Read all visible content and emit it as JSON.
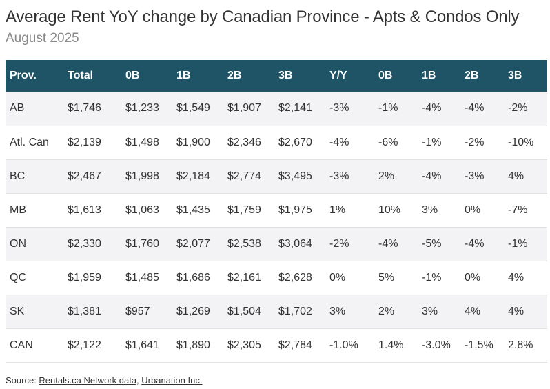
{
  "header": {
    "title": "Average Rent YoY change by Canadian Province - Apts & Condos Only",
    "subtitle": "August 2025"
  },
  "source": {
    "prefix": "Source: ",
    "link1": "Rentals.ca Network data",
    "separator": ", ",
    "link2": "Urbanation Inc."
  },
  "colors": {
    "header_bg": "#1f5466",
    "header_text": "#ffffff",
    "row_shade": "#f3f3f5"
  },
  "chart_data": {
    "type": "table",
    "columns": [
      "Prov.",
      "Total",
      "0B",
      "1B",
      "2B",
      "3B",
      "Y/Y",
      "0B",
      "1B",
      "2B",
      "3B"
    ],
    "rows": [
      [
        "AB",
        "$1,746",
        "$1,233",
        "$1,549",
        "$1,907",
        "$2,141",
        "-3%",
        "-1%",
        "-4%",
        "-4%",
        "-2%"
      ],
      [
        "Atl. Can",
        "$2,139",
        "$1,498",
        "$1,900",
        "$2,346",
        "$2,670",
        "-4%",
        "-6%",
        "-1%",
        "-2%",
        "-10%"
      ],
      [
        "BC",
        "$2,467",
        "$1,998",
        "$2,184",
        "$2,774",
        "$3,495",
        "-3%",
        "2%",
        "-4%",
        "-3%",
        "4%"
      ],
      [
        "MB",
        "$1,613",
        "$1,063",
        "$1,435",
        "$1,759",
        "$1,975",
        "1%",
        "10%",
        "3%",
        "0%",
        "-7%"
      ],
      [
        "ON",
        "$2,330",
        "$1,760",
        "$2,077",
        "$2,538",
        "$3,064",
        "-2%",
        "-4%",
        "-5%",
        "-4%",
        "-1%"
      ],
      [
        "QC",
        "$1,959",
        "$1,485",
        "$1,686",
        "$2,161",
        "$2,628",
        "0%",
        "5%",
        "-1%",
        "0%",
        "4%"
      ],
      [
        "SK",
        "$1,381",
        "$957",
        "$1,269",
        "$1,504",
        "$1,702",
        "3%",
        "2%",
        "3%",
        "4%",
        "4%"
      ],
      [
        "CAN",
        "$2,122",
        "$1,641",
        "$1,890",
        "$2,305",
        "$2,784",
        "-1.0%",
        "1.4%",
        "-3.0%",
        "-1.5%",
        "2.8%"
      ]
    ]
  }
}
